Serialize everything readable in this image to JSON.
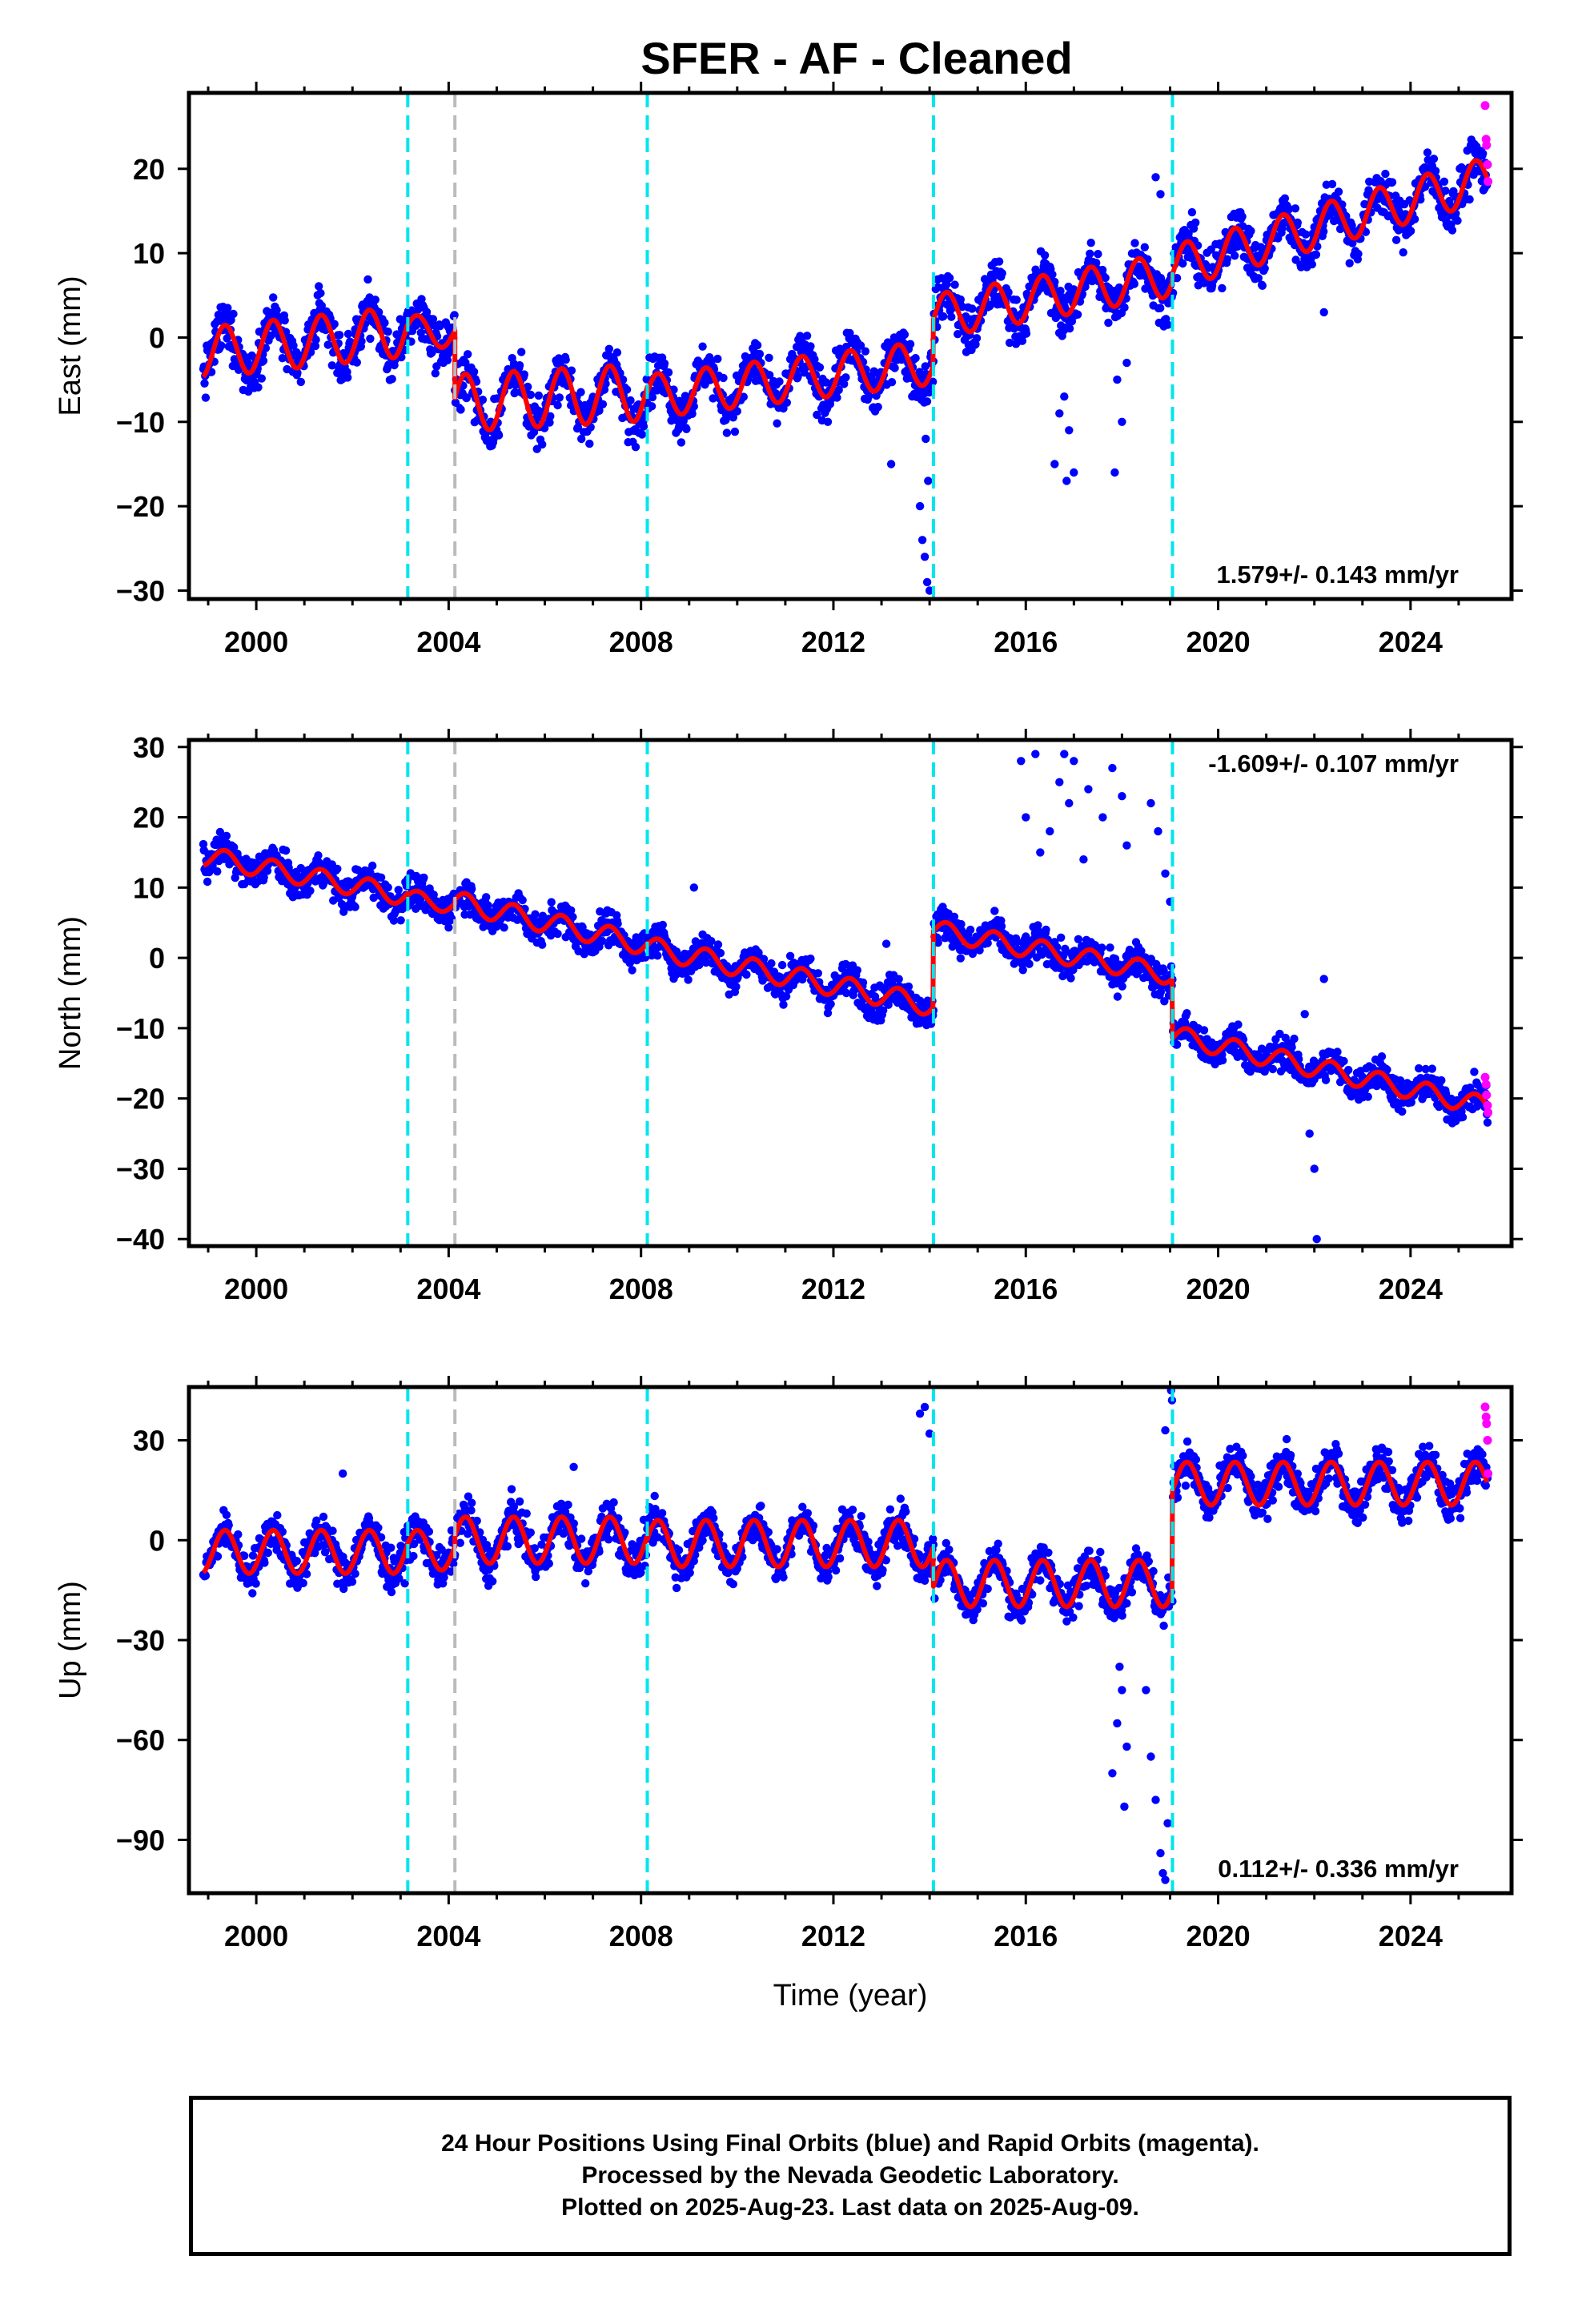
{
  "title": "SFER  - AF - Cleaned",
  "footer": {
    "line1": "24 Hour Positions Using Final Orbits (blue) and Rapid Orbits (magenta).",
    "line2": "Processed by the Nevada Geodetic Laboratory.",
    "line3": "Plotted on 2025-Aug-23. Last data on 2025-Aug-09."
  },
  "colors": {
    "final_orbits": "#0000ff",
    "rapid_orbits": "#ff00ff",
    "model": "#ff0000",
    "equipment_change": "#00e5ee",
    "other_event": "#bbbbbb"
  },
  "chart_data": [
    {
      "type": "scatter",
      "component": "east",
      "ylabel": "East (mm)",
      "xlabel": "",
      "xlim": [
        1998.6,
        2026.1
      ],
      "ylim": [
        -31,
        29
      ],
      "xticks": [
        2000,
        2004,
        2008,
        2012,
        2016,
        2020,
        2024
      ],
      "yticks": [
        -30,
        -20,
        -10,
        0,
        10,
        20
      ],
      "rate_label": "1.579+/- 0.143 mm/yr",
      "event_lines": {
        "cyan": [
          2003.15,
          2008.13,
          2014.08,
          2019.05
        ],
        "gray": [
          2004.13
        ]
      },
      "model": {
        "segments": [
          {
            "t0": 1998.9,
            "t1": 2003.15,
            "base": -1.8,
            "rate": 0.6,
            "amp": 3.0
          },
          {
            "t0": 2003.15,
            "t1": 2004.13,
            "base": 0.9,
            "rate": -0.4,
            "amp": 1.8
          },
          {
            "t0": 2004.13,
            "t1": 2008.13,
            "base": -7.8,
            "rate": 0.33,
            "amp": 3.4
          },
          {
            "t0": 2008.13,
            "t1": 2014.08,
            "base": -7.0,
            "rate": 0.68,
            "amp": 2.6
          },
          {
            "t0": 2014.08,
            "t1": 2019.05,
            "base": 2.5,
            "rate": 1.0,
            "amp": 2.6
          },
          {
            "t0": 2019.05,
            "t1": 2025.6,
            "base": 8.3,
            "rate": 1.6,
            "amp": 2.6
          }
        ]
      },
      "scatter": {
        "noise": 2.6,
        "step": 0.012
      },
      "outliers": [
        {
          "x": 2013.2,
          "y": -15
        },
        {
          "x": 2013.8,
          "y": -20
        },
        {
          "x": 2013.85,
          "y": -24
        },
        {
          "x": 2013.9,
          "y": -26
        },
        {
          "x": 2013.95,
          "y": -29
        },
        {
          "x": 2014.0,
          "y": -30
        },
        {
          "x": 2013.97,
          "y": -17
        },
        {
          "x": 2013.92,
          "y": -12
        },
        {
          "x": 2016.6,
          "y": -15
        },
        {
          "x": 2016.7,
          "y": -9
        },
        {
          "x": 2016.8,
          "y": -7
        },
        {
          "x": 2016.85,
          "y": -17
        },
        {
          "x": 2017.0,
          "y": -16
        },
        {
          "x": 2016.9,
          "y": -11
        },
        {
          "x": 2017.85,
          "y": -16
        },
        {
          "x": 2017.9,
          "y": -5
        },
        {
          "x": 2018.0,
          "y": -10
        },
        {
          "x": 2018.1,
          "y": -3
        },
        {
          "x": 2018.7,
          "y": 19
        },
        {
          "x": 2018.8,
          "y": 17
        },
        {
          "x": 2022.2,
          "y": 3
        }
      ],
      "rapid_points": [
        {
          "x": 2025.55,
          "y": 27.5
        },
        {
          "x": 2025.57,
          "y": 23.5
        },
        {
          "x": 2025.58,
          "y": 22.8
        },
        {
          "x": 2025.6,
          "y": 20.5
        },
        {
          "x": 2025.61,
          "y": 18.5
        }
      ]
    },
    {
      "type": "scatter",
      "component": "north",
      "ylabel": "North (mm)",
      "xlabel": "",
      "xlim": [
        1998.6,
        2026.1
      ],
      "ylim": [
        -41,
        31
      ],
      "xticks": [
        2000,
        2004,
        2008,
        2012,
        2016,
        2020,
        2024
      ],
      "yticks": [
        -40,
        -30,
        -20,
        -10,
        0,
        10,
        20,
        30
      ],
      "rate_label": "-1.609+/- 0.107 mm/yr",
      "event_lines": {
        "cyan": [
          2003.15,
          2008.13,
          2014.08,
          2019.05
        ],
        "gray": [
          2004.13
        ]
      },
      "model": {
        "segments": [
          {
            "t0": 1998.9,
            "t1": 2003.15,
            "base": 14.5,
            "rate": -1.35,
            "amp": 1.4
          },
          {
            "t0": 2003.15,
            "t1": 2004.13,
            "base": 8.5,
            "rate": -1.0,
            "amp": 1.2
          },
          {
            "t0": 2004.13,
            "t1": 2008.13,
            "base": 8.0,
            "rate": -1.55,
            "amp": 1.5
          },
          {
            "t0": 2008.13,
            "t1": 2014.08,
            "base": 1.5,
            "rate": -1.4,
            "amp": 1.5
          },
          {
            "t0": 2014.08,
            "t1": 2019.05,
            "base": 4.0,
            "rate": -1.3,
            "amp": 1.4
          },
          {
            "t0": 2019.05,
            "t1": 2025.6,
            "base": -11.0,
            "rate": -1.55,
            "amp": 1.4
          }
        ]
      },
      "scatter": {
        "noise": 2.2,
        "step": 0.012
      },
      "outliers": [
        {
          "x": 2015.9,
          "y": 28
        },
        {
          "x": 2016.0,
          "y": 20
        },
        {
          "x": 2016.2,
          "y": 29
        },
        {
          "x": 2016.3,
          "y": 15
        },
        {
          "x": 2016.5,
          "y": 18
        },
        {
          "x": 2016.7,
          "y": 25
        },
        {
          "x": 2016.8,
          "y": 29
        },
        {
          "x": 2016.9,
          "y": 22
        },
        {
          "x": 2017.0,
          "y": 28
        },
        {
          "x": 2017.2,
          "y": 14
        },
        {
          "x": 2017.3,
          "y": 24
        },
        {
          "x": 2017.6,
          "y": 20
        },
        {
          "x": 2017.8,
          "y": 27
        },
        {
          "x": 2018.0,
          "y": 23
        },
        {
          "x": 2018.1,
          "y": 16
        },
        {
          "x": 2018.6,
          "y": 22
        },
        {
          "x": 2018.75,
          "y": 18
        },
        {
          "x": 2018.9,
          "y": 12
        },
        {
          "x": 2019.0,
          "y": 8
        },
        {
          "x": 2013.1,
          "y": 2
        },
        {
          "x": 2009.1,
          "y": 10
        },
        {
          "x": 2021.9,
          "y": -25
        },
        {
          "x": 2022.0,
          "y": -30
        },
        {
          "x": 2022.05,
          "y": -40
        },
        {
          "x": 2022.2,
          "y": -3
        },
        {
          "x": 2021.8,
          "y": -8
        }
      ],
      "rapid_points": [
        {
          "x": 2025.55,
          "y": -17
        },
        {
          "x": 2025.57,
          "y": -18
        },
        {
          "x": 2025.58,
          "y": -19.5
        },
        {
          "x": 2025.6,
          "y": -21
        },
        {
          "x": 2025.61,
          "y": -22
        }
      ]
    },
    {
      "type": "scatter",
      "component": "up",
      "ylabel": "Up (mm)",
      "xlabel": "Time (year)",
      "xlim": [
        1998.6,
        2026.1
      ],
      "ylim": [
        -106,
        46
      ],
      "xticks": [
        2000,
        2004,
        2008,
        2012,
        2016,
        2020,
        2024
      ],
      "yticks": [
        -90,
        -60,
        -30,
        0,
        30
      ],
      "rate_label": "0.112+/- 0.336 mm/yr",
      "event_lines": {
        "cyan": [
          2003.15,
          2008.13,
          2014.08,
          2019.05
        ],
        "gray": [
          2004.13
        ]
      },
      "model": {
        "segments": [
          {
            "t0": 1998.9,
            "t1": 2003.15,
            "base": -3.5,
            "rate": 0.0,
            "amp": 6.5
          },
          {
            "t0": 2003.15,
            "t1": 2004.13,
            "base": -3.0,
            "rate": 0.0,
            "amp": 6.0
          },
          {
            "t0": 2004.13,
            "t1": 2008.13,
            "base": 0.0,
            "rate": 0.0,
            "amp": 7.0
          },
          {
            "t0": 2008.13,
            "t1": 2014.08,
            "base": -1.0,
            "rate": 0.0,
            "amp": 7.0
          },
          {
            "t0": 2014.08,
            "t1": 2019.05,
            "base": -13.0,
            "rate": 0.0,
            "amp": 7.0
          },
          {
            "t0": 2019.05,
            "t1": 2025.6,
            "base": 17.0,
            "rate": 0.0,
            "amp": 6.5
          }
        ]
      },
      "scatter": {
        "noise": 5.5,
        "step": 0.012
      },
      "outliers": [
        {
          "x": 2013.8,
          "y": 38
        },
        {
          "x": 2013.9,
          "y": 40
        },
        {
          "x": 2014.0,
          "y": 32
        },
        {
          "x": 2018.6,
          "y": -65
        },
        {
          "x": 2018.7,
          "y": -78
        },
        {
          "x": 2018.8,
          "y": -94
        },
        {
          "x": 2018.85,
          "y": -100
        },
        {
          "x": 2018.9,
          "y": -102
        },
        {
          "x": 2018.95,
          "y": -85
        },
        {
          "x": 2017.8,
          "y": -70
        },
        {
          "x": 2017.9,
          "y": -55
        },
        {
          "x": 2018.0,
          "y": -45
        },
        {
          "x": 2018.05,
          "y": -80
        },
        {
          "x": 2018.1,
          "y": -62
        },
        {
          "x": 2017.95,
          "y": -38
        },
        {
          "x": 2018.5,
          "y": -45
        },
        {
          "x": 2019.02,
          "y": 45
        },
        {
          "x": 2019.04,
          "y": 42
        },
        {
          "x": 2018.9,
          "y": 33
        },
        {
          "x": 2001.8,
          "y": 20
        },
        {
          "x": 2006.6,
          "y": 22
        }
      ],
      "rapid_points": [
        {
          "x": 2025.55,
          "y": 40
        },
        {
          "x": 2025.57,
          "y": 37
        },
        {
          "x": 2025.58,
          "y": 35
        },
        {
          "x": 2025.6,
          "y": 30
        },
        {
          "x": 2025.61,
          "y": 20
        }
      ]
    }
  ]
}
